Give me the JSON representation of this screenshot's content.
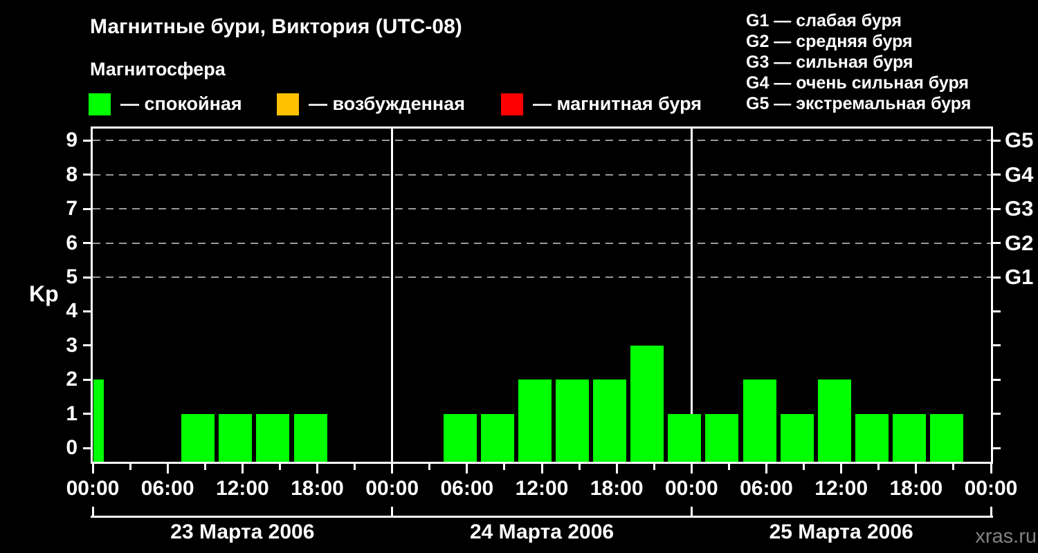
{
  "title": "Магнитные бури, Виктория (UTC-08)",
  "subtitle": "Магнитосфера",
  "legend": {
    "items": [
      {
        "id": "quiet",
        "label": "— спокойная",
        "color": "#00ff00"
      },
      {
        "id": "excited",
        "label": "— возбужденная",
        "color": "#ffc000"
      },
      {
        "id": "storm",
        "label": "— магнитная буря",
        "color": "#ff0000"
      }
    ]
  },
  "storm_scale": {
    "items": [
      "G1 — слабая буря",
      "G2 — средняя буря",
      "G3 — сильная буря",
      "G4 — очень сильная буря",
      "G5 — экстремальная буря"
    ]
  },
  "watermark": "xras.ru",
  "chart_data": {
    "type": "bar",
    "ylabel": "Kp",
    "ylim": [
      -0.4,
      9.4
    ],
    "yticks": [
      0,
      1,
      2,
      3,
      4,
      5,
      6,
      7,
      8,
      9
    ],
    "gridlines_kp": [
      5,
      6,
      7,
      8,
      9
    ],
    "right_axis_labels": [
      {
        "kp": 9,
        "label": "G5"
      },
      {
        "kp": 8,
        "label": "G4"
      },
      {
        "kp": 7,
        "label": "G3"
      },
      {
        "kp": 6,
        "label": "G2"
      },
      {
        "kp": 5,
        "label": "G1"
      }
    ],
    "x_hour_labels": [
      "00:00",
      "06:00",
      "12:00",
      "18:00",
      "00:00",
      "06:00",
      "12:00",
      "18:00",
      "00:00",
      "06:00",
      "12:00",
      "18:00",
      "00:00"
    ],
    "hours_per_slot": 3,
    "days": [
      {
        "date": "23 Марта 2006",
        "kp_3h": [
          0,
          0,
          1,
          1,
          1,
          1,
          0,
          0
        ]
      },
      {
        "date": "24 Марта 2006",
        "kp_3h": [
          0,
          1,
          1,
          2,
          2,
          2,
          3,
          1
        ]
      },
      {
        "date": "25 Марта 2006",
        "kp_3h": [
          1,
          2,
          1,
          2,
          1,
          1,
          1,
          0
        ]
      }
    ],
    "partial_bar_before_first_day_kp": 2,
    "colors": {
      "quiet": "#00ff00",
      "excited": "#ffc000",
      "storm": "#ff0000",
      "grid": "#999999",
      "axis": "#ffffff",
      "text": "#ffffff",
      "watermark": "#828282",
      "background": "#000000"
    },
    "color_rule": {
      "quiet_max_kp": 3,
      "excited_kp": 4,
      "storm_min_kp": 5
    },
    "legend_position": "top-left",
    "grid": "dashed-horizontal-kp5-to-kp9"
  }
}
